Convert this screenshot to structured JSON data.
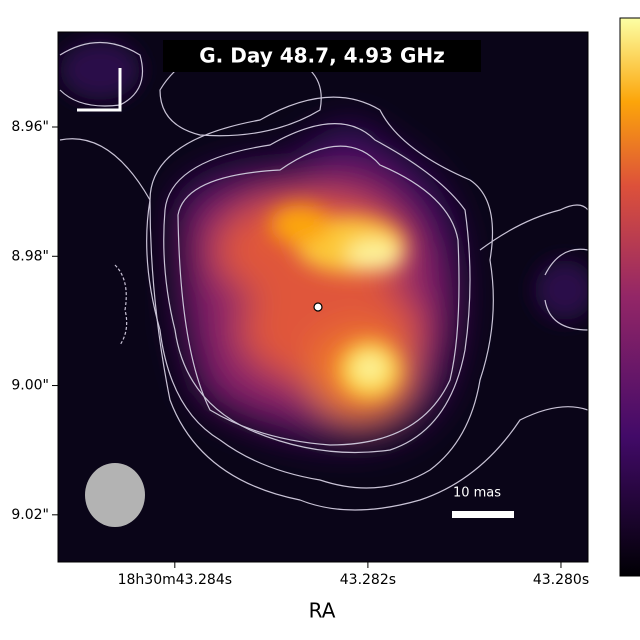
{
  "chart_data": {
    "type": "image",
    "title": "G. Day 48.7, 4.93 GHz",
    "xlabel": "RA",
    "annotations": [
      "10 mas"
    ],
    "xlim": [
      43.28521,
      43.27972
    ],
    "xticks": [
      {
        "value": 43.284,
        "label": "18h30m43.284s"
      },
      {
        "value": 43.282,
        "label": "43.282s"
      },
      {
        "value": 43.28,
        "label": "43.280s"
      }
    ],
    "ylim": [
      9.0273,
      8.9453
    ],
    "yticks": [
      {
        "value": 8.96,
        "label": "8.96\""
      },
      {
        "value": 8.98,
        "label": "8.98\""
      },
      {
        "value": 9.0,
        "label": "9.00\""
      },
      {
        "value": 9.02,
        "label": "9.02\""
      }
    ],
    "colormap": "inferno"
  }
}
